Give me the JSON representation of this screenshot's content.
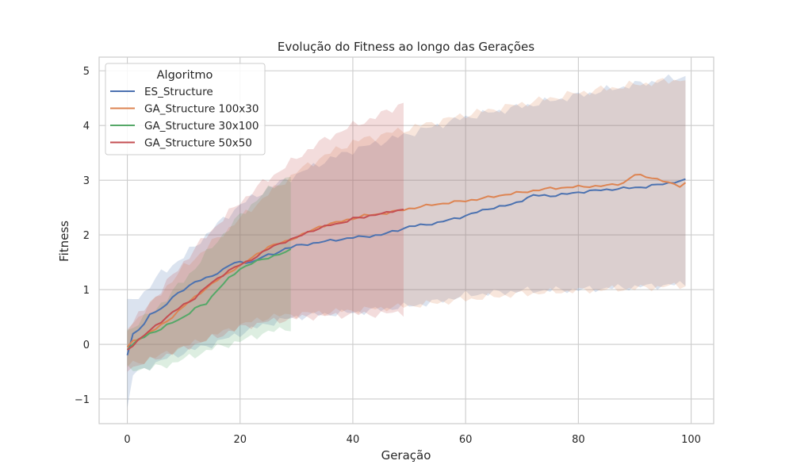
{
  "chart_data": {
    "type": "line",
    "title": "Evolução do Fitness ao longo das Gerações",
    "xlabel": "Geração",
    "ylabel": "Fitness",
    "xlim": [
      -5,
      104
    ],
    "ylim": [
      -1.45,
      5.25
    ],
    "x_ticks": [
      0,
      20,
      40,
      60,
      80,
      100
    ],
    "x_tick_labels": [
      "0",
      "20",
      "40",
      "60",
      "80",
      "100"
    ],
    "y_ticks": [
      -1,
      0,
      1,
      2,
      3,
      4,
      5
    ],
    "y_tick_labels": [
      "−1",
      "0",
      "1",
      "2",
      "3",
      "4",
      "5"
    ],
    "grid": true,
    "legend": {
      "title": "Algoritmo",
      "placement": "top-left"
    },
    "series": [
      {
        "name": "ES_Structure",
        "color": "#4c72b0",
        "length": 100,
        "mean_points": [
          [
            0,
            -0.2
          ],
          [
            1,
            0.2
          ],
          [
            3,
            0.35
          ],
          [
            4,
            0.55
          ],
          [
            6,
            0.65
          ],
          [
            8,
            0.85
          ],
          [
            10,
            1.0
          ],
          [
            12,
            1.15
          ],
          [
            14,
            1.2
          ],
          [
            16,
            1.3
          ],
          [
            18,
            1.45
          ],
          [
            20,
            1.5
          ],
          [
            22,
            1.5
          ],
          [
            24,
            1.6
          ],
          [
            26,
            1.65
          ],
          [
            28,
            1.75
          ],
          [
            30,
            1.8
          ],
          [
            35,
            1.88
          ],
          [
            40,
            1.95
          ],
          [
            45,
            2.0
          ],
          [
            50,
            2.15
          ],
          [
            55,
            2.22
          ],
          [
            60,
            2.35
          ],
          [
            64,
            2.48
          ],
          [
            68,
            2.55
          ],
          [
            72,
            2.72
          ],
          [
            76,
            2.72
          ],
          [
            80,
            2.78
          ],
          [
            84,
            2.82
          ],
          [
            88,
            2.85
          ],
          [
            92,
            2.88
          ],
          [
            96,
            2.95
          ],
          [
            99,
            3.0
          ]
        ],
        "band_upper_points": [
          [
            0,
            0.75
          ],
          [
            3,
            0.95
          ],
          [
            6,
            1.3
          ],
          [
            10,
            1.6
          ],
          [
            15,
            2.1
          ],
          [
            20,
            2.55
          ],
          [
            25,
            2.85
          ],
          [
            30,
            3.1
          ],
          [
            35,
            3.35
          ],
          [
            40,
            3.55
          ],
          [
            50,
            3.85
          ],
          [
            60,
            4.15
          ],
          [
            70,
            4.35
          ],
          [
            80,
            4.55
          ],
          [
            90,
            4.75
          ],
          [
            99,
            4.9
          ]
        ],
        "band_lower_points": [
          [
            0,
            -1.2
          ],
          [
            1,
            -0.55
          ],
          [
            3,
            -0.45
          ],
          [
            6,
            -0.3
          ],
          [
            10,
            -0.15
          ],
          [
            15,
            0.0
          ],
          [
            20,
            0.2
          ],
          [
            25,
            0.38
          ],
          [
            30,
            0.5
          ],
          [
            35,
            0.55
          ],
          [
            40,
            0.58
          ],
          [
            50,
            0.7
          ],
          [
            55,
            0.78
          ],
          [
            60,
            0.9
          ],
          [
            70,
            0.98
          ],
          [
            80,
            1.0
          ],
          [
            90,
            1.05
          ],
          [
            99,
            1.1
          ]
        ]
      },
      {
        "name": "GA_Structure 100x30",
        "color": "#dd8452",
        "length": 100,
        "mean_points": [
          [
            0,
            -0.05
          ],
          [
            1,
            0.05
          ],
          [
            3,
            0.15
          ],
          [
            5,
            0.28
          ],
          [
            7,
            0.42
          ],
          [
            9,
            0.6
          ],
          [
            11,
            0.78
          ],
          [
            13,
            0.95
          ],
          [
            15,
            1.1
          ],
          [
            17,
            1.25
          ],
          [
            19,
            1.38
          ],
          [
            21,
            1.5
          ],
          [
            23,
            1.65
          ],
          [
            25,
            1.78
          ],
          [
            28,
            1.88
          ],
          [
            31,
            2.0
          ],
          [
            34,
            2.15
          ],
          [
            38,
            2.25
          ],
          [
            42,
            2.35
          ],
          [
            46,
            2.4
          ],
          [
            50,
            2.48
          ],
          [
            54,
            2.55
          ],
          [
            58,
            2.6
          ],
          [
            62,
            2.65
          ],
          [
            66,
            2.72
          ],
          [
            70,
            2.78
          ],
          [
            75,
            2.85
          ],
          [
            80,
            2.88
          ],
          [
            85,
            2.9
          ],
          [
            88,
            2.95
          ],
          [
            90,
            3.1
          ],
          [
            93,
            3.05
          ],
          [
            96,
            2.95
          ],
          [
            98,
            2.9
          ],
          [
            99,
            2.95
          ]
        ],
        "band_upper_points": [
          [
            0,
            0.3
          ],
          [
            3,
            0.6
          ],
          [
            6,
            0.95
          ],
          [
            10,
            1.4
          ],
          [
            15,
            1.85
          ],
          [
            20,
            2.3
          ],
          [
            25,
            2.75
          ],
          [
            30,
            3.15
          ],
          [
            35,
            3.45
          ],
          [
            40,
            3.7
          ],
          [
            50,
            3.95
          ],
          [
            60,
            4.2
          ],
          [
            70,
            4.4
          ],
          [
            80,
            4.6
          ],
          [
            90,
            4.75
          ],
          [
            99,
            4.85
          ]
        ],
        "band_lower_points": [
          [
            0,
            -0.4
          ],
          [
            3,
            -0.3
          ],
          [
            6,
            -0.2
          ],
          [
            10,
            -0.05
          ],
          [
            15,
            0.15
          ],
          [
            20,
            0.35
          ],
          [
            25,
            0.5
          ],
          [
            30,
            0.55
          ],
          [
            40,
            0.62
          ],
          [
            50,
            0.7
          ],
          [
            60,
            0.82
          ],
          [
            70,
            0.92
          ],
          [
            80,
            0.98
          ],
          [
            90,
            1.02
          ],
          [
            99,
            1.08
          ]
        ]
      },
      {
        "name": "GA_Structure 30x100",
        "color": "#55a868",
        "length": 30,
        "mean_points": [
          [
            0,
            -0.1
          ],
          [
            2,
            0.08
          ],
          [
            4,
            0.2
          ],
          [
            6,
            0.28
          ],
          [
            8,
            0.4
          ],
          [
            10,
            0.5
          ],
          [
            12,
            0.65
          ],
          [
            14,
            0.75
          ],
          [
            16,
            1.0
          ],
          [
            18,
            1.2
          ],
          [
            20,
            1.38
          ],
          [
            22,
            1.48
          ],
          [
            24,
            1.55
          ],
          [
            26,
            1.62
          ],
          [
            28,
            1.68
          ],
          [
            29,
            1.72
          ]
        ],
        "band_upper_points": [
          [
            0,
            0.25
          ],
          [
            4,
            0.55
          ],
          [
            8,
            0.95
          ],
          [
            12,
            1.4
          ],
          [
            16,
            1.9
          ],
          [
            20,
            2.35
          ],
          [
            24,
            2.75
          ],
          [
            29,
            3.1
          ]
        ],
        "band_lower_points": [
          [
            0,
            -0.45
          ],
          [
            4,
            -0.45
          ],
          [
            8,
            -0.35
          ],
          [
            12,
            -0.2
          ],
          [
            16,
            -0.05
          ],
          [
            20,
            0.05
          ],
          [
            24,
            0.2
          ],
          [
            29,
            0.3
          ]
        ]
      },
      {
        "name": "GA_Structure 50x50",
        "color": "#c44e52",
        "length": 50,
        "mean_points": [
          [
            0,
            -0.1
          ],
          [
            2,
            0.08
          ],
          [
            4,
            0.25
          ],
          [
            6,
            0.42
          ],
          [
            8,
            0.58
          ],
          [
            10,
            0.72
          ],
          [
            12,
            0.85
          ],
          [
            14,
            1.05
          ],
          [
            16,
            1.2
          ],
          [
            18,
            1.35
          ],
          [
            20,
            1.45
          ],
          [
            22,
            1.55
          ],
          [
            24,
            1.68
          ],
          [
            26,
            1.8
          ],
          [
            28,
            1.88
          ],
          [
            30,
            1.95
          ],
          [
            32,
            2.05
          ],
          [
            34,
            2.12
          ],
          [
            36,
            2.18
          ],
          [
            38,
            2.22
          ],
          [
            40,
            2.3
          ],
          [
            42,
            2.32
          ],
          [
            44,
            2.38
          ],
          [
            46,
            2.4
          ],
          [
            48,
            2.45
          ],
          [
            49,
            2.47
          ]
        ],
        "band_upper_points": [
          [
            0,
            0.3
          ],
          [
            4,
            0.75
          ],
          [
            8,
            1.25
          ],
          [
            12,
            1.75
          ],
          [
            16,
            2.2
          ],
          [
            20,
            2.6
          ],
          [
            24,
            2.95
          ],
          [
            28,
            3.25
          ],
          [
            32,
            3.55
          ],
          [
            36,
            3.8
          ],
          [
            40,
            4.0
          ],
          [
            44,
            4.15
          ],
          [
            49,
            4.42
          ]
        ],
        "band_lower_points": [
          [
            0,
            -0.45
          ],
          [
            4,
            -0.3
          ],
          [
            8,
            -0.15
          ],
          [
            12,
            0.0
          ],
          [
            16,
            0.15
          ],
          [
            20,
            0.3
          ],
          [
            24,
            0.4
          ],
          [
            28,
            0.45
          ],
          [
            32,
            0.5
          ],
          [
            36,
            0.52
          ],
          [
            40,
            0.55
          ],
          [
            44,
            0.55
          ],
          [
            49,
            0.58
          ]
        ]
      }
    ]
  }
}
